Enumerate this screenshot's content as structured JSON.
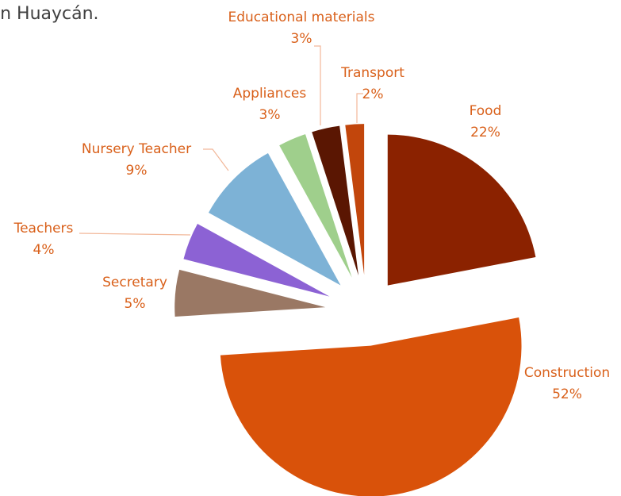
{
  "chart_data": {
    "type": "pie",
    "caption": "in Huaycán.",
    "categories": [
      "Food",
      "Construction",
      "Secretary",
      "Teachers",
      "Nursery Teacher",
      "Appliances",
      "Educational materials",
      "Transport"
    ],
    "values": [
      22,
      52,
      5,
      4,
      9,
      3,
      3,
      2
    ],
    "value_labels": [
      "22%",
      "52%",
      "5%",
      "4%",
      "9%",
      "3%",
      "3%",
      "2%"
    ],
    "colors": [
      "#8b2200",
      "#d9520a",
      "#9a7864",
      "#8c62d4",
      "#7db2d6",
      "#9fcf8c",
      "#5a1602",
      "#c2460c"
    ]
  }
}
